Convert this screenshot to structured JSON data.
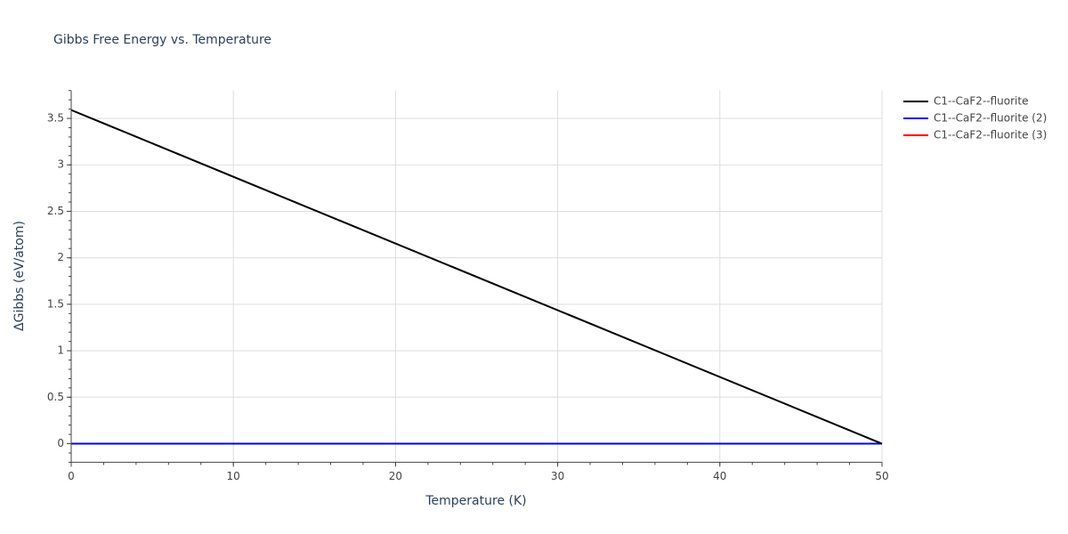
{
  "chart_data": {
    "type": "line",
    "title": "Gibbs Free Energy vs. Temperature",
    "x_label": "Temperature (K)",
    "y_label": "ΔGibbs (eV/atom)",
    "xlim": [
      0,
      50
    ],
    "xticks": [
      0,
      10,
      20,
      30,
      40,
      50
    ],
    "ylim": [
      -0.2,
      3.8
    ],
    "yticks": [
      0,
      0.5,
      1,
      1.5,
      2,
      2.5,
      3,
      3.5
    ],
    "grid": true,
    "minor_ticks": true,
    "legend": "right",
    "series": [
      {
        "name": "C1--CaF2--fluorite",
        "color": "#000000",
        "x": [
          0,
          50
        ],
        "values": [
          3.59,
          0
        ]
      },
      {
        "name": "C1--CaF2--fluorite (2)",
        "color": "#0000ff",
        "x": [
          0,
          50
        ],
        "values": [
          0,
          0
        ]
      },
      {
        "name": "C1--CaF2--fluorite (3)",
        "color": "#ff0000",
        "x": [
          0,
          50
        ],
        "values": [
          0,
          0
        ]
      }
    ]
  }
}
